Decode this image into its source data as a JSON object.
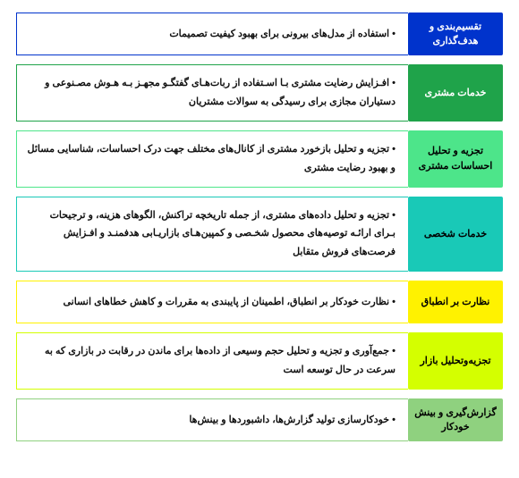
{
  "rows": [
    {
      "label": "تقسیم‌بندی و هدف‌گذاری",
      "desc": "• استفاده از مدل‌های بیرونی برای بهبود کیفیت تصمیمات",
      "label_bg": "#0033cc",
      "label_color": "#ffffff",
      "border_color": "#0033cc"
    },
    {
      "label": "خدمات مشتری",
      "desc": "• افـزایش رضایت مشتری بـا اسـتفاده از ربات‌هـای گفتگـو مجهـز بـه هـوش مصـنوعی و دستیاران مجازی برای رسیدگی به سوالات مشتریان",
      "label_bg": "#1fa34a",
      "label_color": "#ffffff",
      "border_color": "#1fa34a"
    },
    {
      "label": "تجزیه و تحلیل احساسات مشتری",
      "desc": "• تجزیه و تحلیل بازخورد مشتری از کانال‌های مختلف جهت درک احساسات، شناسایی مسائل و بهبود رضایت مشتری",
      "label_bg": "#4de58a",
      "label_color": "#000000",
      "border_color": "#4de58a"
    },
    {
      "label": "خدمات شخصی",
      "desc": "• تجزیه و تحلیل داده‌های مشتری، از جمله تاریخچه تراکنش، الگوهای هزینه، و ترجیحات بـرای ارائـه توصیه‌های محصول شخـصی و کمپین‌هـای بازاریـابی هدفمنـد و افـزایش فرصت‌های فروش متقابل",
      "label_bg": "#19c9b7",
      "label_color": "#000000",
      "border_color": "#19c9b7"
    },
    {
      "label": "نظارت بر انطباق",
      "desc": "• نظارت خودکار بر انطباق، اطمینان از پایبندی به مقررات و کاهش خطاهای انسانی",
      "label_bg": "#fff200",
      "label_color": "#000000",
      "border_color": "#fff200"
    },
    {
      "label": "تجزیه‌وتحلیل بازار",
      "desc": "• جمع‌آوری و تجزیه و تحلیل حجم وسیعی از داده‌ها برای ماندن در رقابت در بازاری که به سرعت در حال توسعه است",
      "label_bg": "#d4ff00",
      "label_color": "#000000",
      "border_color": "#d4ff00"
    },
    {
      "label": "گزارش‌گیری و بینش خودکار",
      "desc": "• خودکارسازی تولید گزارش‌ها، داشبوردها و بینش‌ها",
      "label_bg": "#8fd17f",
      "label_color": "#000000",
      "border_color": "#8fd17f"
    }
  ]
}
